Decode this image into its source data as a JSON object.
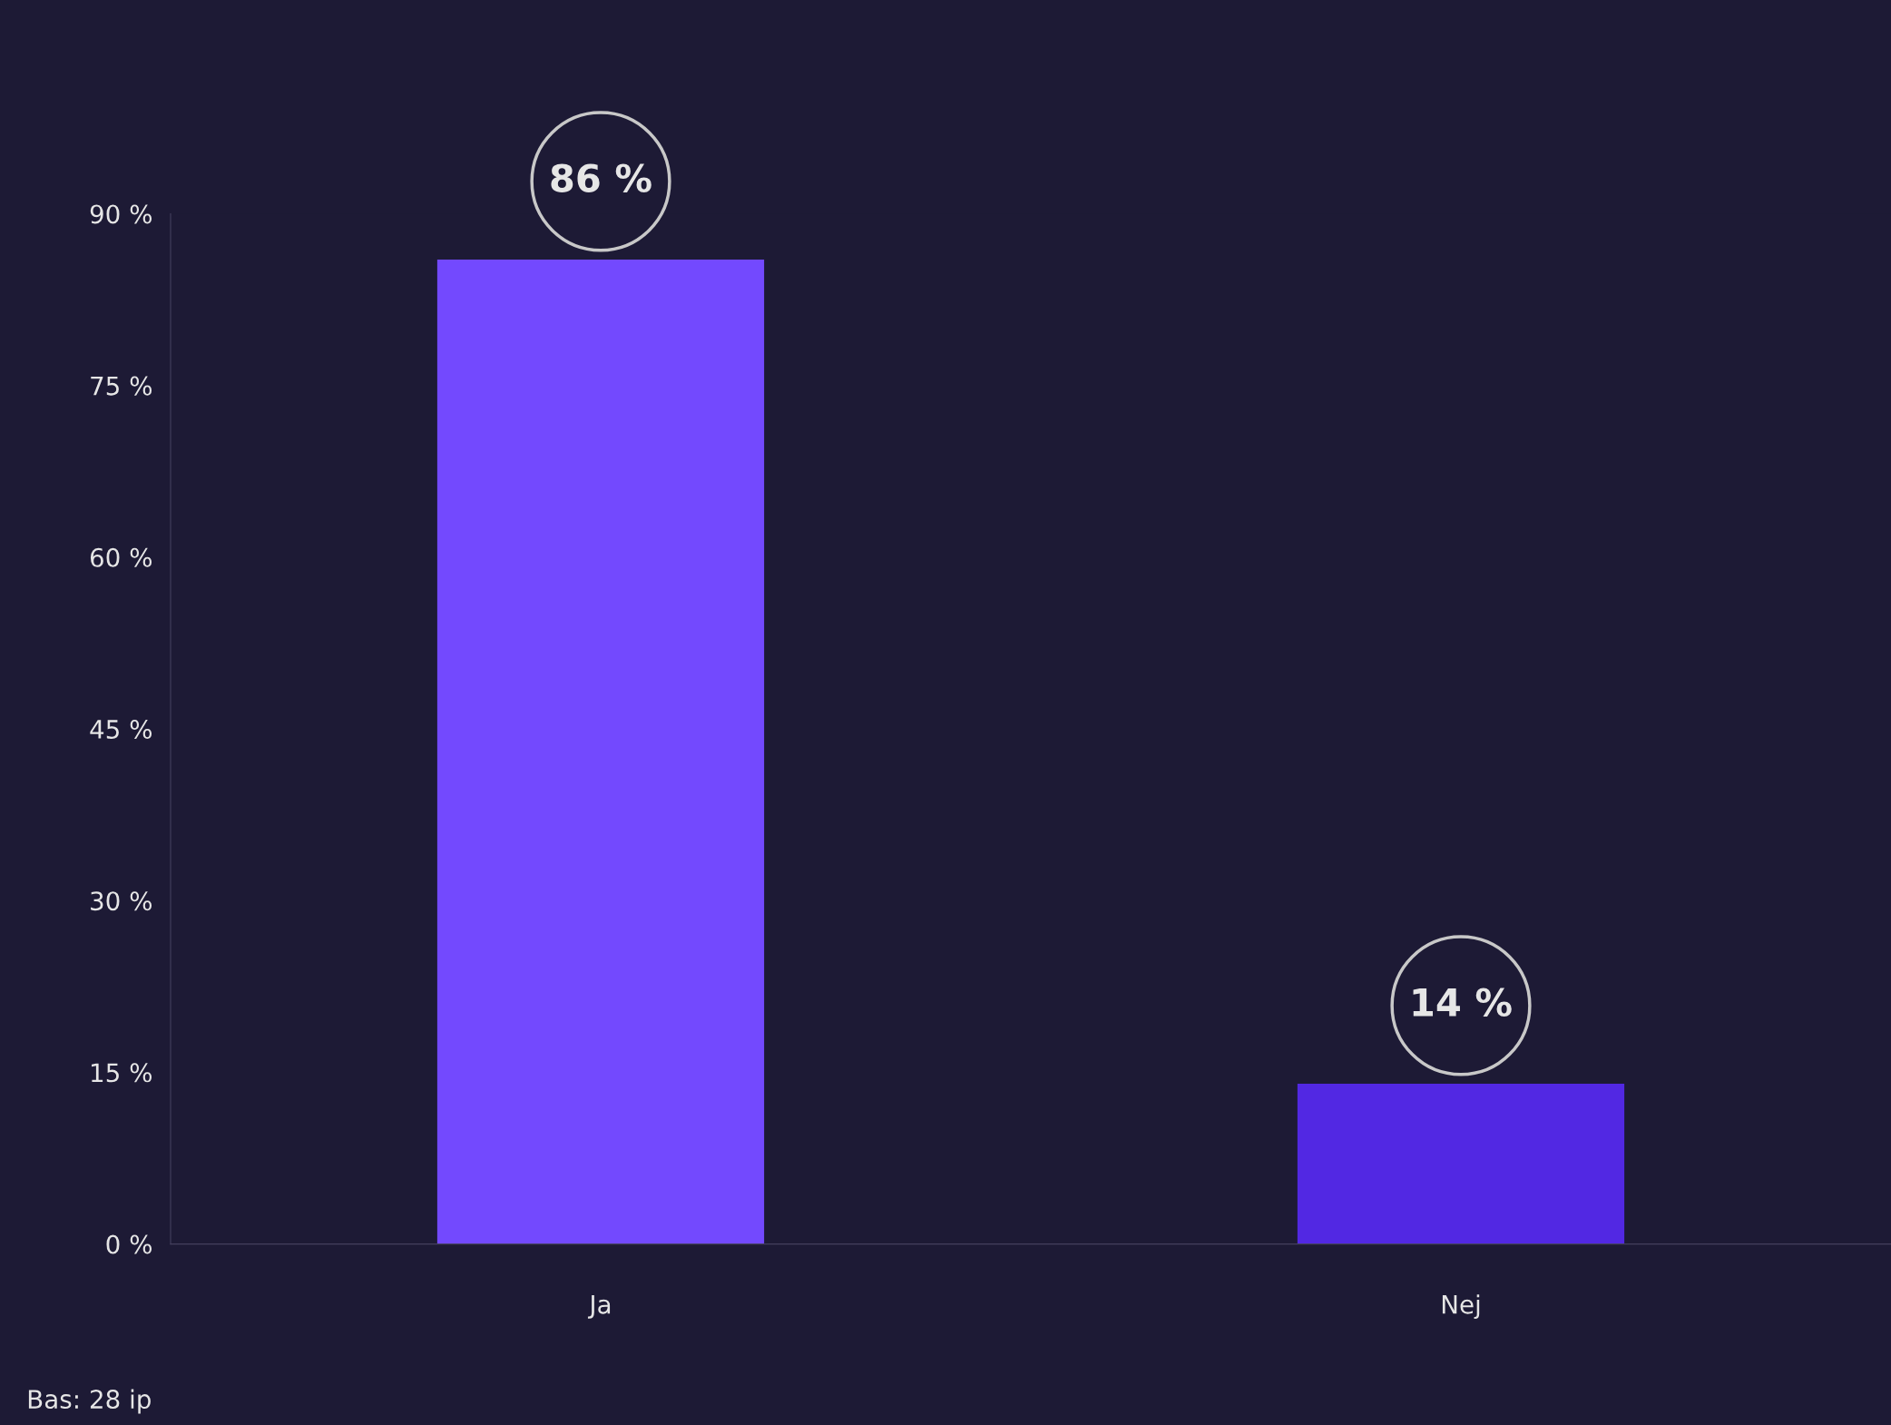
{
  "chart_data": {
    "type": "bar",
    "categories": [
      "Ja",
      "Nej"
    ],
    "values": [
      86,
      14
    ],
    "colors": [
      "#7349fe",
      "#5228e3"
    ],
    "value_labels": [
      "86 %",
      "14 %"
    ],
    "ylim": [
      0,
      90
    ],
    "yticks": [
      {
        "value": 0,
        "label": "0 %"
      },
      {
        "value": 15,
        "label": "15 %"
      },
      {
        "value": 30,
        "label": "30 %"
      },
      {
        "value": 45,
        "label": "45 %"
      },
      {
        "value": 60,
        "label": "60 %"
      },
      {
        "value": 75,
        "label": "75 %"
      },
      {
        "value": 90,
        "label": "90 %"
      }
    ],
    "grid": false,
    "legend": false,
    "annotations": [
      "Bas: 28 ip"
    ]
  }
}
